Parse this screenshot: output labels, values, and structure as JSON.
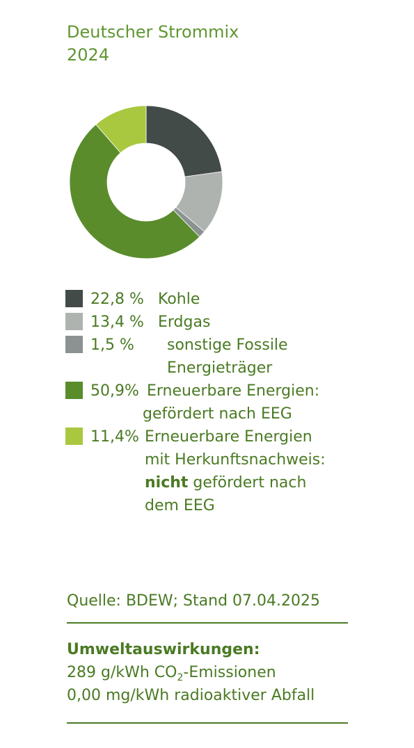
{
  "title": {
    "line1": "Deutscher Strommix",
    "line2": "2024"
  },
  "chart_data": {
    "type": "pie",
    "style": "donut",
    "unit": "%",
    "slices": [
      {
        "label": "Kohle",
        "value": 22.8,
        "color": "#434b48",
        "pct_text": "22,8 %",
        "label_lines": [
          "Kohle"
        ]
      },
      {
        "label": "Erdgas",
        "value": 13.4,
        "color": "#aeb3af",
        "pct_text": "13,4 %",
        "label_lines": [
          "Erdgas"
        ]
      },
      {
        "label": "sonstige Fossile Energieträger",
        "value": 1.5,
        "color": "#8b9291",
        "pct_text": "1,5 %",
        "label_lines": [
          "sonstige Fossile",
          "Energieträger"
        ]
      },
      {
        "label": "Erneuerbare Energien: gefördert nach EEG",
        "value": 50.9,
        "color": "#5a8c2c",
        "pct_text": "50,9%",
        "label_lines": [
          "Erneuerbare Energien:",
          "gefördert nach EEG"
        ]
      },
      {
        "label": "Erneuerbare Energien mit Herkunftsnachweis: nicht gefördert nach dem EEG",
        "value": 11.4,
        "color": "#a9c83f",
        "pct_text": "11,4%",
        "label_lines": [
          "Erneuerbare Energien",
          "mit Herkunftsnachweis:"
        ],
        "bold_word": "nicht",
        "bold_rest": " gefördert nach",
        "last_line": "dem EEG"
      }
    ]
  },
  "source": "Quelle: BDEW; Stand 07.04.2025",
  "impact": {
    "heading": "Umweltauswirkungen:",
    "co2_prefix": "289 g/kWh CO",
    "co2_sub": "2",
    "co2_suffix": "-Emissionen",
    "radio": "0,00 mg/kWh radioaktiver Abfall"
  }
}
